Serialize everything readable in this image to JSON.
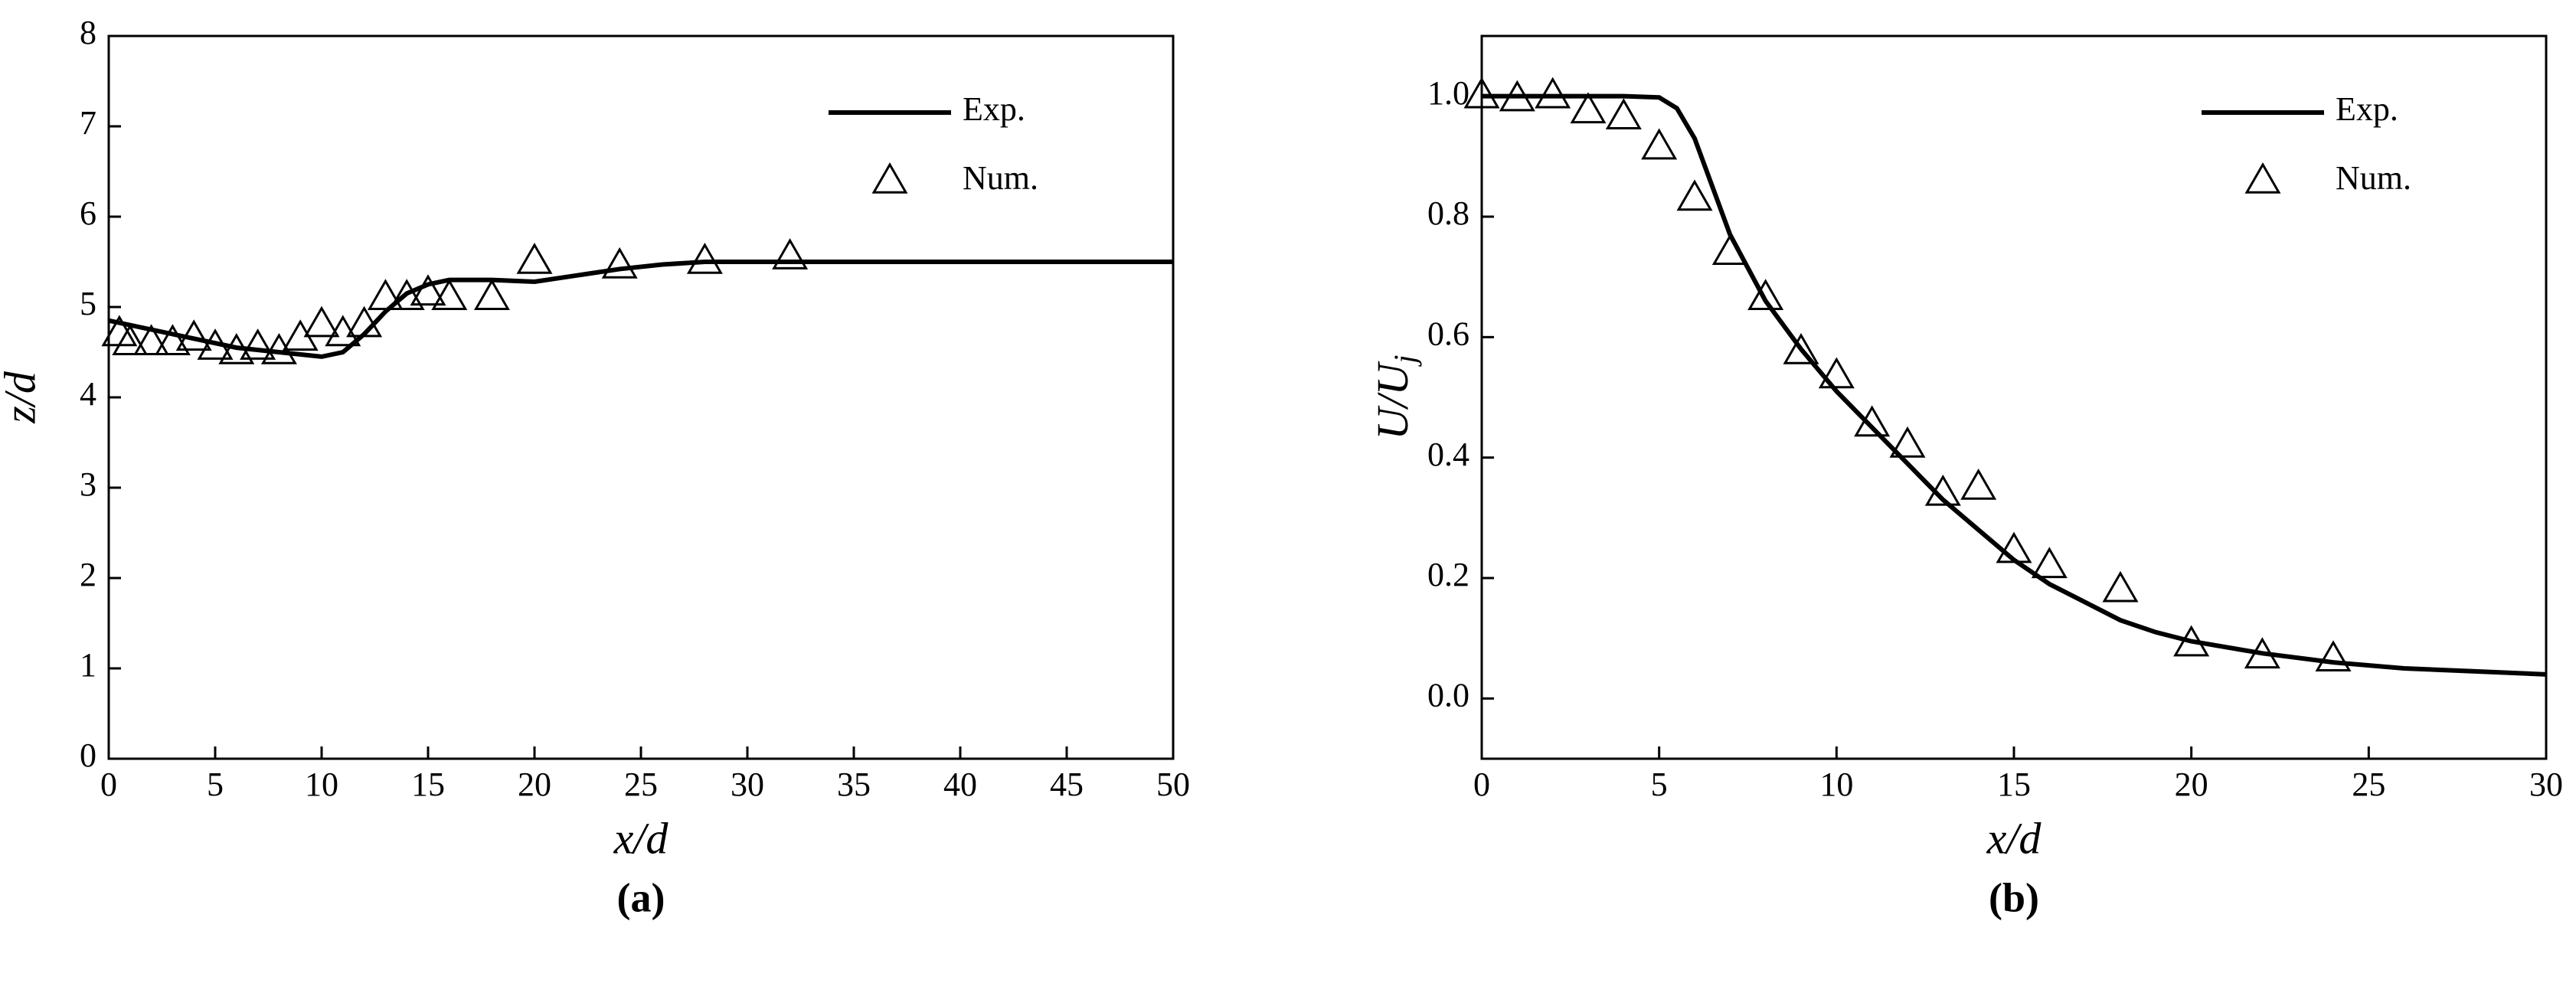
{
  "chart_data": [
    {
      "type": "line",
      "caption": "(a)",
      "xlabel": "x/d",
      "ylabel": "z/d",
      "xlim": [
        0,
        50
      ],
      "xticks": [
        0,
        5,
        10,
        15,
        20,
        25,
        30,
        35,
        40,
        45,
        50
      ],
      "ylim": [
        0,
        8
      ],
      "yticks": [
        0,
        1,
        2,
        3,
        4,
        5,
        6,
        7,
        8
      ],
      "legend": "upper right",
      "series": [
        {
          "name": "Exp.",
          "color": "#000000",
          "marker": "none",
          "x": [
            0,
            2,
            4,
            6,
            8,
            10,
            11,
            12,
            13,
            14,
            15,
            16,
            18,
            20,
            22,
            24,
            26,
            28,
            30,
            35,
            40,
            45,
            50
          ],
          "values": [
            4.85,
            4.75,
            4.65,
            4.55,
            4.5,
            4.45,
            4.5,
            4.7,
            4.95,
            5.15,
            5.25,
            5.3,
            5.3,
            5.28,
            5.35,
            5.42,
            5.47,
            5.5,
            5.5,
            5.5,
            5.5,
            5.5,
            5.5
          ]
        },
        {
          "name": "Num.",
          "color": "#000000",
          "marker": "triangle",
          "x": [
            0.5,
            1,
            2,
            3,
            4,
            5,
            6,
            7,
            8,
            9,
            10,
            11,
            12,
            13,
            14,
            15,
            16,
            18,
            20,
            24,
            28,
            32
          ],
          "values": [
            4.7,
            4.6,
            4.6,
            4.6,
            4.65,
            4.55,
            4.5,
            4.55,
            4.5,
            4.65,
            4.8,
            4.7,
            4.8,
            5.1,
            5.1,
            5.15,
            5.1,
            5.1,
            5.5,
            5.45,
            5.5,
            5.55
          ]
        }
      ]
    },
    {
      "type": "line",
      "caption": "(b)",
      "xlabel": "x/d",
      "ylabel": "U/U",
      "ylabel_sub": "j",
      "xlim": [
        0,
        30
      ],
      "xticks": [
        0,
        5,
        10,
        15,
        20,
        25,
        30
      ],
      "ylim": [
        -0.1,
        1.1
      ],
      "yticks": [
        {
          "value": 0,
          "label": "0.0"
        },
        0.2,
        0.4,
        0.6,
        0.8,
        {
          "value": 1,
          "label": "1.0"
        }
      ],
      "legend": "upper right",
      "series": [
        {
          "name": "Exp.",
          "color": "#000000",
          "marker": "none",
          "x": [
            0,
            4,
            5,
            5.5,
            6,
            6.5,
            7,
            8,
            9,
            10,
            11,
            12,
            13,
            14,
            15,
            16,
            17,
            18,
            19,
            20,
            22,
            24,
            26,
            28,
            30
          ],
          "values": [
            1,
            1,
            0.998,
            0.98,
            0.93,
            0.85,
            0.77,
            0.66,
            0.58,
            0.51,
            0.45,
            0.39,
            0.33,
            0.28,
            0.23,
            0.19,
            0.16,
            0.13,
            0.11,
            0.095,
            0.075,
            0.06,
            0.05,
            0.045,
            0.04
          ]
        },
        {
          "name": "Num.",
          "color": "#000000",
          "marker": "triangle",
          "x": [
            0,
            1,
            2,
            3,
            4,
            5,
            6,
            7,
            8,
            9,
            10,
            11,
            12,
            13,
            14,
            15,
            16,
            18,
            20,
            22,
            24
          ],
          "values": [
            1.0,
            0.995,
            1.0,
            0.975,
            0.965,
            0.915,
            0.83,
            0.74,
            0.665,
            0.575,
            0.535,
            0.455,
            0.42,
            0.34,
            0.35,
            0.245,
            0.22,
            0.18,
            0.09,
            0.07,
            0.065
          ]
        }
      ]
    }
  ]
}
